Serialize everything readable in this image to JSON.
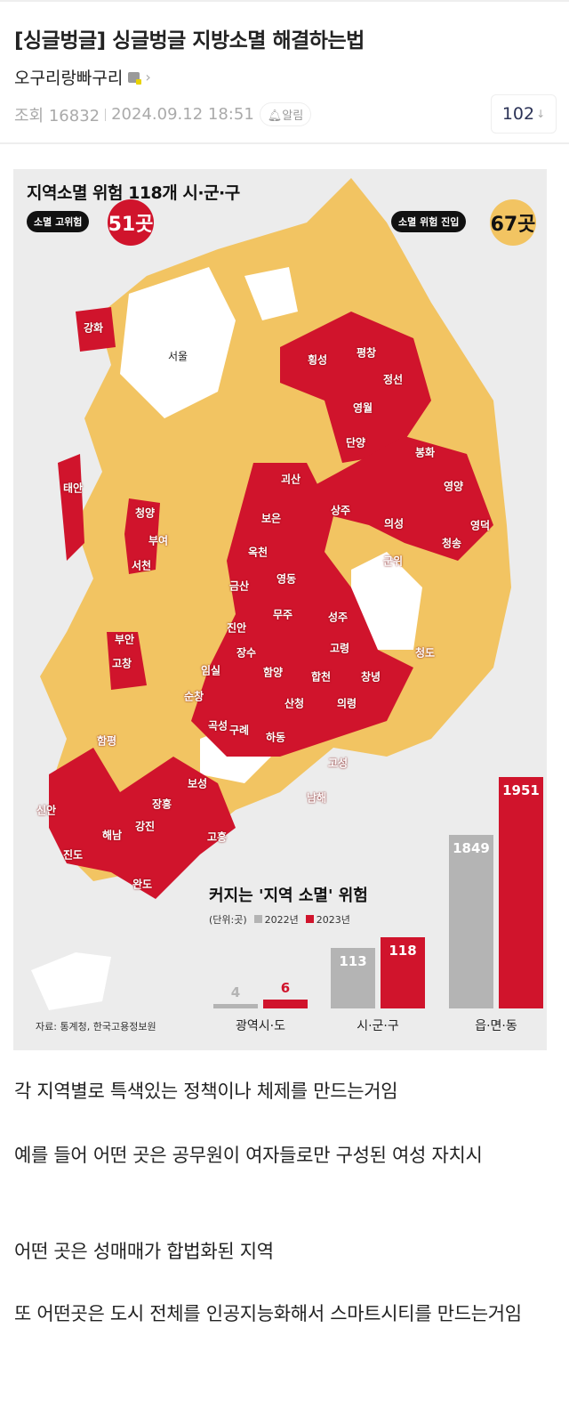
{
  "post": {
    "title": "[싱글벙글] 싱글벙글 지방소멸 해결하는법",
    "author": "오구리랑빠구리",
    "author_level_icon": "level-badge-icon",
    "views": "조회 16832",
    "datetime": "2024.09.12 18:51",
    "alarm_label": "알림",
    "comment_count": "102",
    "comment_arrow": "↓"
  },
  "infographic": {
    "title": "지역소멸 위험 118개 시·군·구",
    "high_risk_label": "소멸 고위험",
    "high_risk_count": "51곳",
    "risk_entry_label": "소멸 위험 진입",
    "risk_entry_count": "67곳",
    "source": "자료: 통계청, 한국고용정보원",
    "seoul": "서울",
    "regions": [
      "강화",
      "횡성",
      "평창",
      "정선",
      "영월",
      "단양",
      "봉화",
      "영양",
      "영덕",
      "청송",
      "태안",
      "괴산",
      "청양",
      "부여",
      "서천",
      "보은",
      "상주",
      "의성",
      "옥천",
      "영동",
      "군위",
      "금산",
      "무주",
      "성주",
      "진안",
      "장수",
      "고령",
      "청도",
      "부안",
      "고창",
      "임실",
      "함양",
      "합천",
      "창녕",
      "순창",
      "산청",
      "의령",
      "곡성",
      "구례",
      "하동",
      "고성",
      "함평",
      "남해",
      "보성",
      "장흥",
      "신안",
      "강진",
      "해남",
      "고흥",
      "진도",
      "완도"
    ],
    "colors": {
      "high_risk": "#d0142c",
      "risk_entry": "#f2c462",
      "safe": "#ffffff",
      "background": "#ececec"
    }
  },
  "chart_data": {
    "type": "bar",
    "title": "커지는 '지역 소멸' 위험",
    "unit": "(단위:곳)",
    "categories": [
      "광역시·도",
      "시·군·구",
      "읍·면·동"
    ],
    "series": [
      {
        "name": "2022년",
        "values": [
          4,
          113,
          1849
        ],
        "color": "#b4b4b4"
      },
      {
        "name": "2023년",
        "values": [
          6,
          118,
          1951
        ],
        "color": "#d0142c"
      }
    ]
  },
  "body": {
    "paragraphs": [
      "각 지역별로 특색있는 정책이나 체제를 만드는거임",
      "예를 들어 어떤 곳은 공무원이 여자들로만 구성된 여성 자치시",
      "어떤 곳은 성매매가 합법화된 지역",
      "또 어떤곳은 도시 전체를 인공지능화해서 스마트시티를 만드는거임"
    ]
  }
}
